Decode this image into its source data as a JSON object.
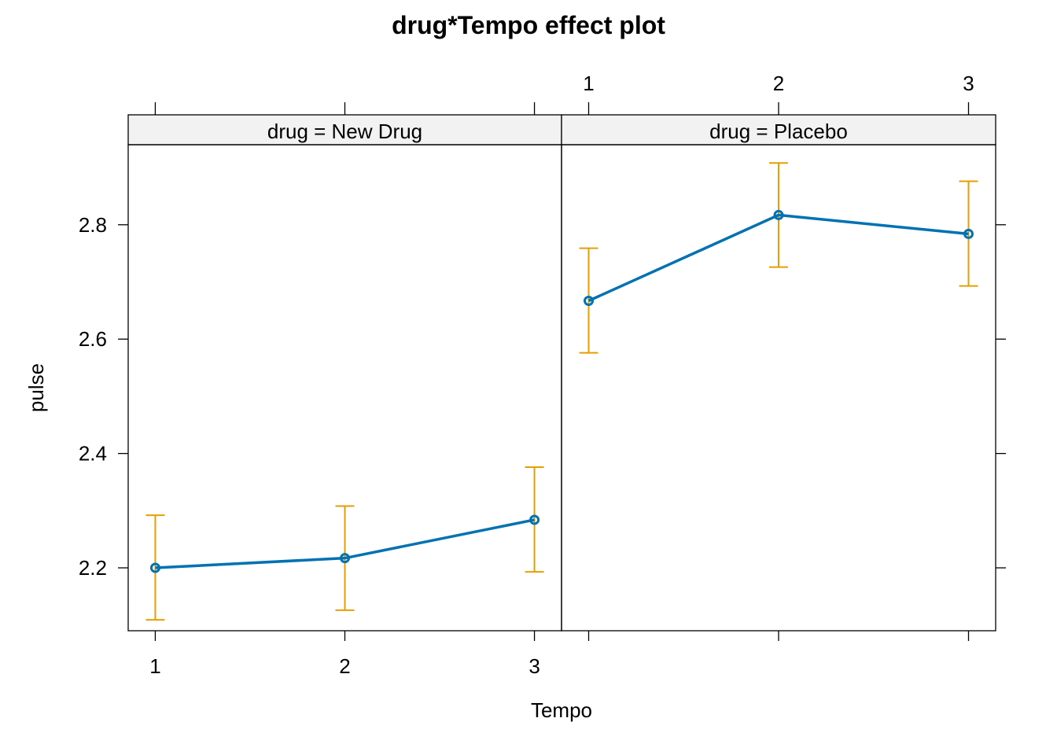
{
  "colors": {
    "line": "#0072b2",
    "error_bar": "#e69f00",
    "strip_background": "#f2f2f2",
    "axis": "#000000"
  },
  "chart_data": {
    "type": "line",
    "title": "drug*Tempo effect plot",
    "xlabel": "Tempo",
    "ylabel": "pulse",
    "x_categories": [
      "1",
      "2",
      "3"
    ],
    "y_ticks": [
      "2.2",
      "2.4",
      "2.6",
      "2.8"
    ],
    "ylim": [
      2.09,
      2.94
    ],
    "grid": false,
    "legend": "none",
    "panels": [
      {
        "strip_label": "drug = New Drug",
        "x": [
          1,
          2,
          3
        ],
        "y": [
          2.2,
          2.217,
          2.284
        ],
        "lower": [
          2.109,
          2.126,
          2.193
        ],
        "upper": [
          2.292,
          2.308,
          2.376
        ]
      },
      {
        "strip_label": "drug = Placebo",
        "x": [
          1,
          2,
          3
        ],
        "y": [
          2.667,
          2.817,
          2.784
        ],
        "lower": [
          2.576,
          2.726,
          2.693
        ],
        "upper": [
          2.759,
          2.908,
          2.876
        ]
      }
    ]
  }
}
